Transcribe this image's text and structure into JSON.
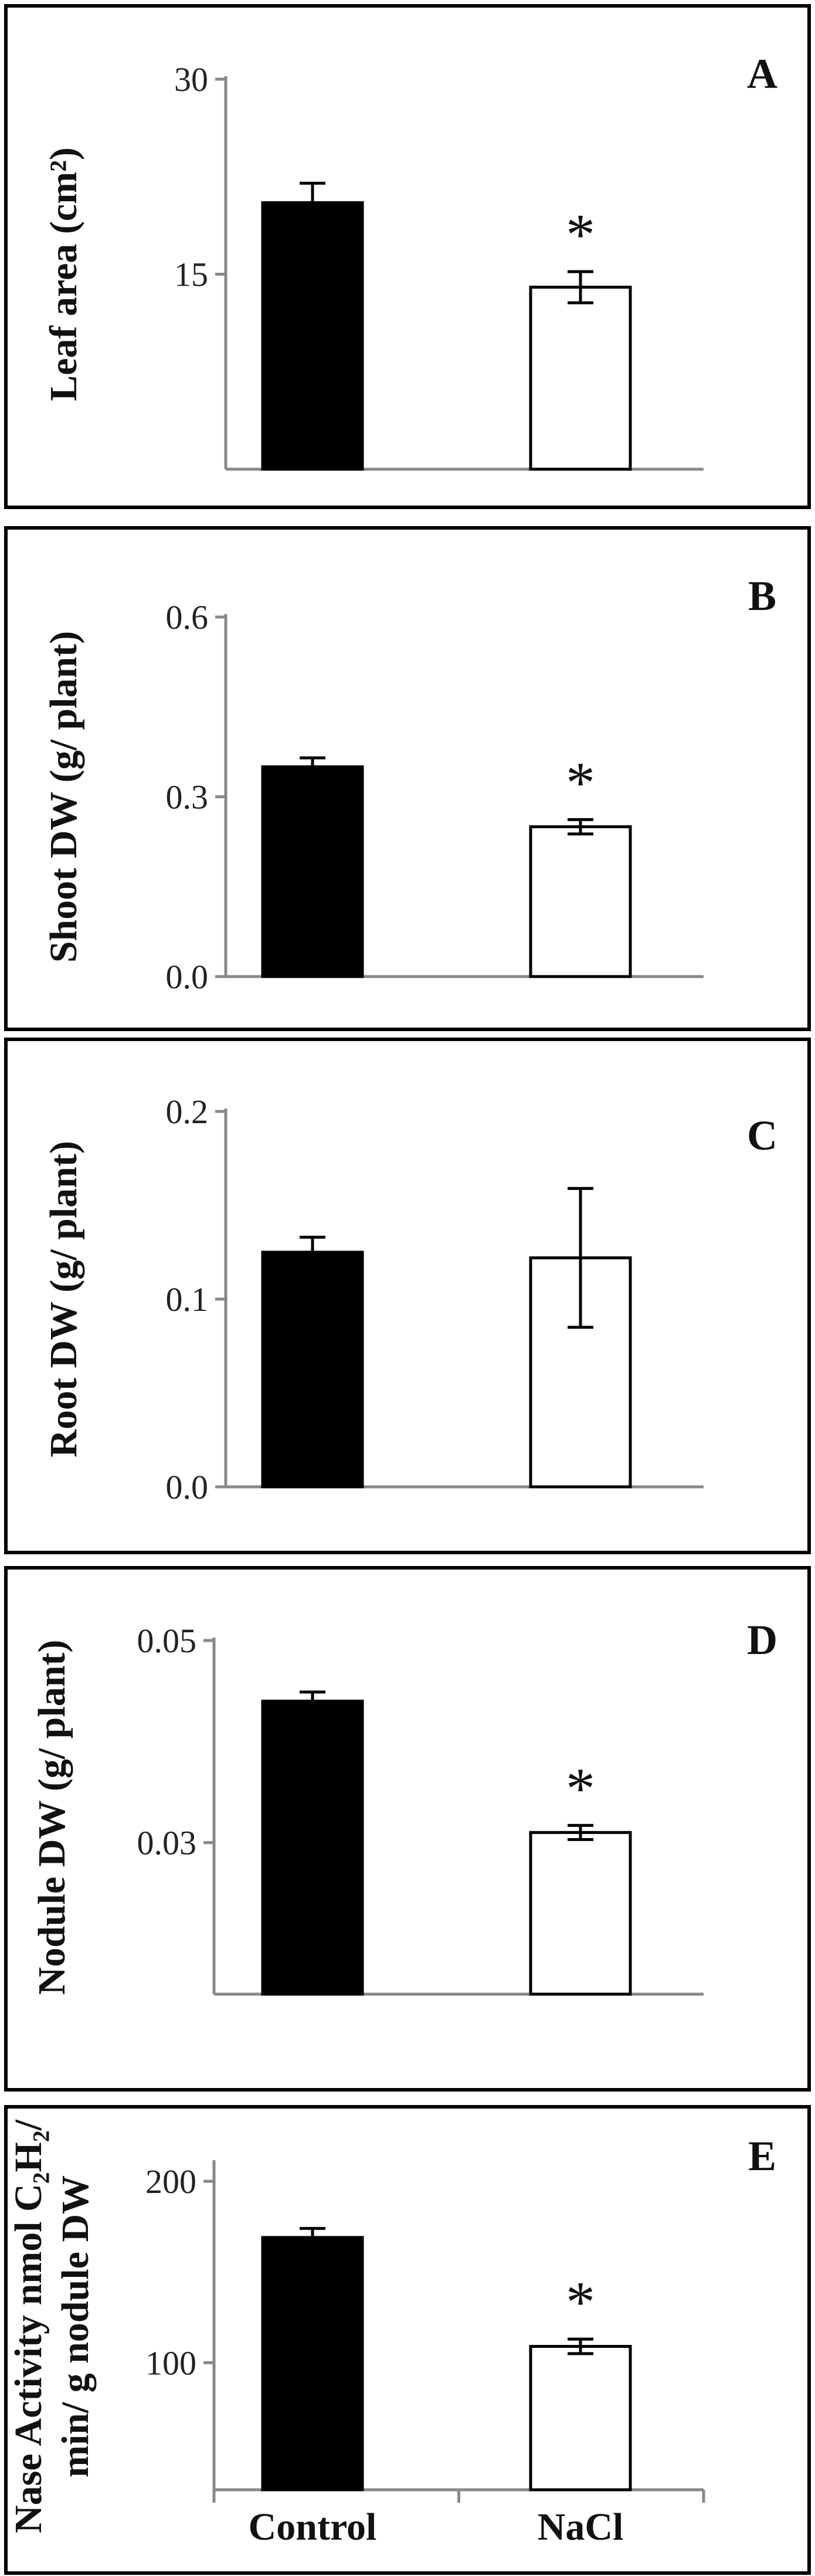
{
  "chart_data": [
    {
      "panel": "A",
      "type": "bar",
      "categories": [
        "Control",
        "NaCl"
      ],
      "values": [
        20.5,
        14
      ],
      "errors": [
        1.5,
        1.2
      ],
      "significant": [
        false,
        true
      ],
      "significance_marker": "*",
      "ylabel": "Leaf area (cm²)",
      "ylim": [
        0,
        30
      ],
      "yticks": [
        "15",
        "30"
      ],
      "colors": [
        "#000000",
        "#ffffff"
      ]
    },
    {
      "panel": "B",
      "type": "bar",
      "categories": [
        "Control",
        "NaCl"
      ],
      "values": [
        0.35,
        0.25
      ],
      "errors": [
        0.015,
        0.012
      ],
      "significant": [
        false,
        true
      ],
      "significance_marker": "*",
      "ylabel": "Shoot DW (g/ plant)",
      "ylim": [
        0,
        0.6
      ],
      "yticks": [
        "0.0",
        "0.3",
        "0.6"
      ],
      "colors": [
        "#000000",
        "#ffffff"
      ]
    },
    {
      "panel": "C",
      "type": "bar",
      "categories": [
        "Control",
        "NaCl"
      ],
      "values": [
        0.125,
        0.122
      ],
      "errors": [
        0.008,
        0.037
      ],
      "significant": [
        false,
        false
      ],
      "significance_marker": "*",
      "ylabel": "Root DW (g/ plant)",
      "ylim": [
        0,
        0.2
      ],
      "yticks": [
        "0.0",
        "0.1",
        "0.2"
      ],
      "colors": [
        "#000000",
        "#ffffff"
      ]
    },
    {
      "panel": "D",
      "type": "bar",
      "categories": [
        "Control",
        "NaCl"
      ],
      "values": [
        0.044,
        0.031
      ],
      "errors": [
        0.0009,
        0.0007
      ],
      "significant": [
        false,
        true
      ],
      "significance_marker": "*",
      "ylabel": "Nodule DW (g/ plant)",
      "ylim": [
        0.015,
        0.05
      ],
      "yticks": [
        "0.03",
        "0.05"
      ],
      "colors": [
        "#000000",
        "#ffffff"
      ]
    },
    {
      "panel": "E",
      "type": "bar",
      "categories": [
        "Control",
        "NaCl"
      ],
      "values": [
        169,
        109
      ],
      "errors": [
        5,
        4
      ],
      "significant": [
        false,
        true
      ],
      "significance_marker": "*",
      "ylabel_line1": "Nase Activity nmol C₂H₂/",
      "ylabel_line2": "min/ g  nodule DW",
      "ylim": [
        30,
        210
      ],
      "yticks": [
        "100",
        "200"
      ],
      "colors": [
        "#000000",
        "#ffffff"
      ],
      "show_category_labels": true
    }
  ]
}
